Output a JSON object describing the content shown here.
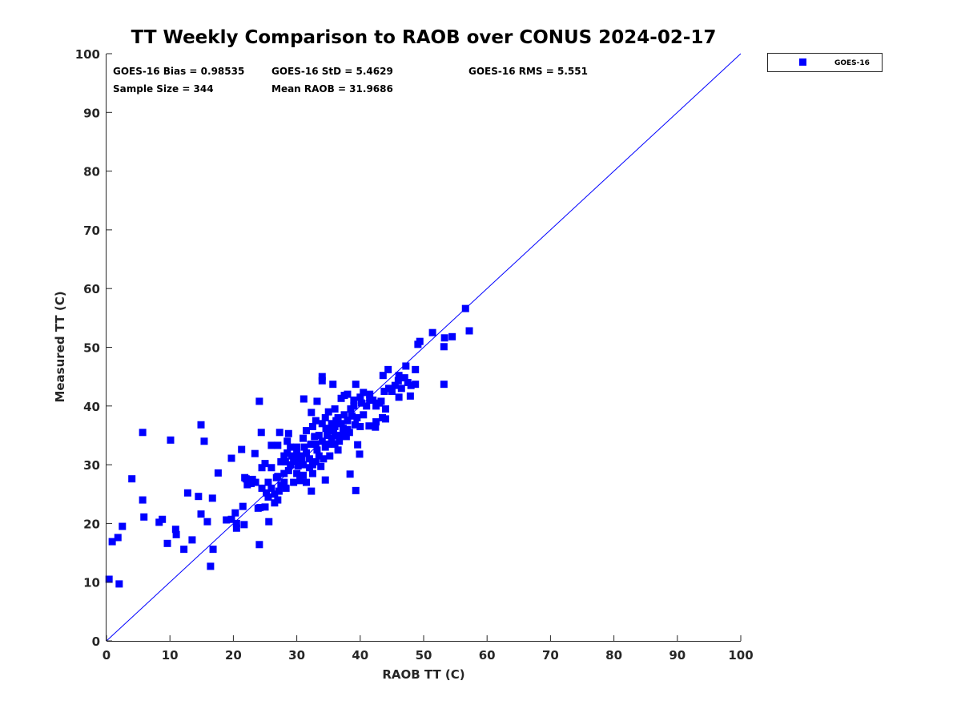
{
  "chart_data": {
    "type": "scatter",
    "title": "TT Weekly Comparison to RAOB over CONUS 2024-02-17",
    "xlabel": "RAOB TT (C)",
    "ylabel": "Measured TT (C)",
    "xlim": [
      0,
      100
    ],
    "ylim": [
      0,
      100
    ],
    "xticks": [
      "0",
      "10",
      "20",
      "30",
      "40",
      "50",
      "60",
      "70",
      "80",
      "90",
      "100"
    ],
    "yticks": [
      "0",
      "10",
      "20",
      "30",
      "40",
      "50",
      "60",
      "70",
      "80",
      "90",
      "100"
    ],
    "grid": false,
    "legend": {
      "position": "outside-top-right",
      "entries": [
        "GOES-16"
      ]
    },
    "annotations": [
      "GOES-16 Bias = 0.98535",
      "GOES-16 StD = 5.4629",
      "GOES-16 RMS = 5.551",
      "Sample Size = 344",
      "Mean RAOB = 31.9686"
    ],
    "reference_line": {
      "name": "1:1 line",
      "from": [
        0,
        0
      ],
      "to": [
        100,
        100
      ]
    },
    "series": [
      {
        "name": "GOES-16",
        "color": "#0000ff",
        "marker": "square",
        "points": [
          [
            0.4,
            10.5
          ],
          [
            0.9,
            16.9
          ],
          [
            1.8,
            17.6
          ],
          [
            2.0,
            9.7
          ],
          [
            2.5,
            19.5
          ],
          [
            4.0,
            27.6
          ],
          [
            5.7,
            35.5
          ],
          [
            5.7,
            24.0
          ],
          [
            5.9,
            21.1
          ],
          [
            8.3,
            20.2
          ],
          [
            8.8,
            20.7
          ],
          [
            9.6,
            16.6
          ],
          [
            10.1,
            34.2
          ],
          [
            10.9,
            19.0
          ],
          [
            11.0,
            18.1
          ],
          [
            12.2,
            15.6
          ],
          [
            12.8,
            25.2
          ],
          [
            13.5,
            17.2
          ],
          [
            14.5,
            24.6
          ],
          [
            14.9,
            36.8
          ],
          [
            14.9,
            21.6
          ],
          [
            15.4,
            34.0
          ],
          [
            15.9,
            20.3
          ],
          [
            16.4,
            12.7
          ],
          [
            16.7,
            24.3
          ],
          [
            16.8,
            15.6
          ],
          [
            17.6,
            28.6
          ],
          [
            18.9,
            20.6
          ],
          [
            19.7,
            31.1
          ],
          [
            19.7,
            20.7
          ],
          [
            20.3,
            21.8
          ],
          [
            20.5,
            20.0
          ],
          [
            20.5,
            19.2
          ],
          [
            21.3,
            32.6
          ],
          [
            21.5,
            22.9
          ],
          [
            21.7,
            19.8
          ],
          [
            22.0,
            27.6
          ],
          [
            22.2,
            26.6
          ],
          [
            23.4,
            31.9
          ],
          [
            23.9,
            22.6
          ],
          [
            24.1,
            16.4
          ],
          [
            24.1,
            40.8
          ],
          [
            24.4,
            35.5
          ],
          [
            25.6,
            20.3
          ],
          [
            27.3,
            35.5
          ],
          [
            28.7,
            35.3
          ],
          [
            31.1,
            41.2
          ],
          [
            32.3,
            38.9
          ],
          [
            32.3,
            25.5
          ],
          [
            33.2,
            40.8
          ],
          [
            34.0,
            45.0
          ],
          [
            34.0,
            44.3
          ],
          [
            34.5,
            27.4
          ],
          [
            35.7,
            43.7
          ],
          [
            38.4,
            28.4
          ],
          [
            39.3,
            43.7
          ],
          [
            39.3,
            25.6
          ],
          [
            39.6,
            33.4
          ],
          [
            39.9,
            31.8
          ],
          [
            41.4,
            36.6
          ],
          [
            42.4,
            36.4
          ],
          [
            43.6,
            45.2
          ],
          [
            44.4,
            46.2
          ],
          [
            46.1,
            41.5
          ],
          [
            46.1,
            45.2
          ],
          [
            47.2,
            46.8
          ],
          [
            47.9,
            41.7
          ],
          [
            48.7,
            46.2
          ],
          [
            48.7,
            43.7
          ],
          [
            49.1,
            50.5
          ],
          [
            49.4,
            51.0
          ],
          [
            51.4,
            52.5
          ],
          [
            53.2,
            43.7
          ],
          [
            53.2,
            50.1
          ],
          [
            53.3,
            51.6
          ],
          [
            54.5,
            51.8
          ],
          [
            56.6,
            56.6
          ],
          [
            57.2,
            52.8
          ],
          [
            24.5,
            29.5
          ],
          [
            25,
            30.2
          ],
          [
            25.5,
            27
          ],
          [
            26,
            26
          ],
          [
            26.5,
            25
          ],
          [
            26,
            29.5
          ],
          [
            27,
            28
          ],
          [
            27.5,
            30.5
          ],
          [
            28,
            31.5
          ],
          [
            28.5,
            32
          ],
          [
            28,
            27
          ],
          [
            27,
            24
          ],
          [
            26.5,
            23.5
          ],
          [
            25.5,
            24.5
          ],
          [
            25,
            22.8
          ],
          [
            24.2,
            22.7
          ],
          [
            24.5,
            26
          ],
          [
            26,
            33.3
          ],
          [
            27,
            33.3
          ],
          [
            28.5,
            34
          ],
          [
            29,
            33
          ],
          [
            29.5,
            31
          ],
          [
            30,
            32
          ],
          [
            30.5,
            31.5
          ],
          [
            31,
            30
          ],
          [
            31.5,
            32
          ],
          [
            32,
            31
          ],
          [
            32.5,
            30
          ],
          [
            30,
            28.5
          ],
          [
            29.5,
            27
          ],
          [
            30.5,
            27.3
          ],
          [
            31,
            28.2
          ],
          [
            31.5,
            27
          ],
          [
            32,
            29.5
          ],
          [
            32.5,
            28.5
          ],
          [
            33,
            30.5
          ],
          [
            33.5,
            31.5
          ],
          [
            33,
            33.5
          ],
          [
            33.5,
            35
          ],
          [
            34,
            34
          ],
          [
            34.5,
            33
          ],
          [
            35,
            33.5
          ],
          [
            35.5,
            34.5
          ],
          [
            36,
            33.5
          ],
          [
            36.5,
            32.5
          ],
          [
            35,
            36
          ],
          [
            35.5,
            37
          ],
          [
            36,
            36.5
          ],
          [
            36.5,
            38
          ],
          [
            37,
            37
          ],
          [
            37.5,
            38.5
          ],
          [
            38,
            37.5
          ],
          [
            38.5,
            39.5
          ],
          [
            39,
            40
          ],
          [
            37,
            35
          ],
          [
            36,
            35
          ],
          [
            34,
            37
          ],
          [
            34.5,
            38
          ],
          [
            35,
            39
          ],
          [
            36,
            39.5
          ],
          [
            33,
            37.5
          ],
          [
            32.5,
            36.5
          ],
          [
            31.5,
            35.8
          ],
          [
            31,
            34.5
          ],
          [
            30,
            33
          ],
          [
            29,
            30
          ],
          [
            28.7,
            29
          ],
          [
            28,
            28.5
          ],
          [
            27.5,
            26.5
          ],
          [
            28.3,
            26
          ],
          [
            29.7,
            30.5
          ],
          [
            30.2,
            29.8
          ],
          [
            30.8,
            31
          ],
          [
            33.8,
            29.7
          ],
          [
            34.2,
            31
          ],
          [
            35.2,
            31.5
          ],
          [
            34.8,
            35
          ],
          [
            35.8,
            35.8
          ],
          [
            36.7,
            34
          ],
          [
            37.3,
            36.2
          ],
          [
            38,
            36
          ],
          [
            38.7,
            38.3
          ],
          [
            39.5,
            38
          ],
          [
            40,
            36.5
          ],
          [
            40.5,
            38.5
          ],
          [
            41,
            40
          ],
          [
            41.5,
            41
          ],
          [
            40,
            41.5
          ],
          [
            40.5,
            42.3
          ],
          [
            41.5,
            42
          ],
          [
            42,
            41
          ],
          [
            42.5,
            40
          ],
          [
            43,
            40.5
          ],
          [
            43.5,
            38
          ],
          [
            44,
            39.5
          ],
          [
            43.8,
            42.5
          ],
          [
            44.5,
            43
          ],
          [
            45,
            42.5
          ],
          [
            45.5,
            43.5
          ],
          [
            46,
            44.3
          ],
          [
            46.5,
            43
          ],
          [
            47,
            44.8
          ],
          [
            47.5,
            44
          ],
          [
            48,
            43.5
          ],
          [
            39,
            41
          ],
          [
            38,
            42
          ],
          [
            37.5,
            41.8
          ],
          [
            37,
            41.3
          ],
          [
            40.2,
            40.5
          ],
          [
            42.5,
            37.3
          ],
          [
            43.3,
            40.8
          ],
          [
            44,
            37.8
          ],
          [
            22.5,
            27.2
          ],
          [
            23,
            27.5
          ],
          [
            23.5,
            27
          ],
          [
            22.8,
            26.8
          ],
          [
            21.8,
            27.8
          ],
          [
            25.2,
            25.2
          ],
          [
            26.8,
            27.8
          ],
          [
            27.2,
            25.5
          ],
          [
            28.2,
            30.5
          ],
          [
            29.2,
            31.5
          ],
          [
            31.2,
            33
          ],
          [
            32.2,
            33.5
          ],
          [
            32.8,
            34.8
          ],
          [
            33.2,
            32.5
          ],
          [
            34.6,
            36.2
          ],
          [
            36.2,
            37.5
          ],
          [
            37.8,
            34.8
          ],
          [
            38.3,
            35.5
          ],
          [
            39.2,
            36.8
          ]
        ]
      }
    ]
  }
}
